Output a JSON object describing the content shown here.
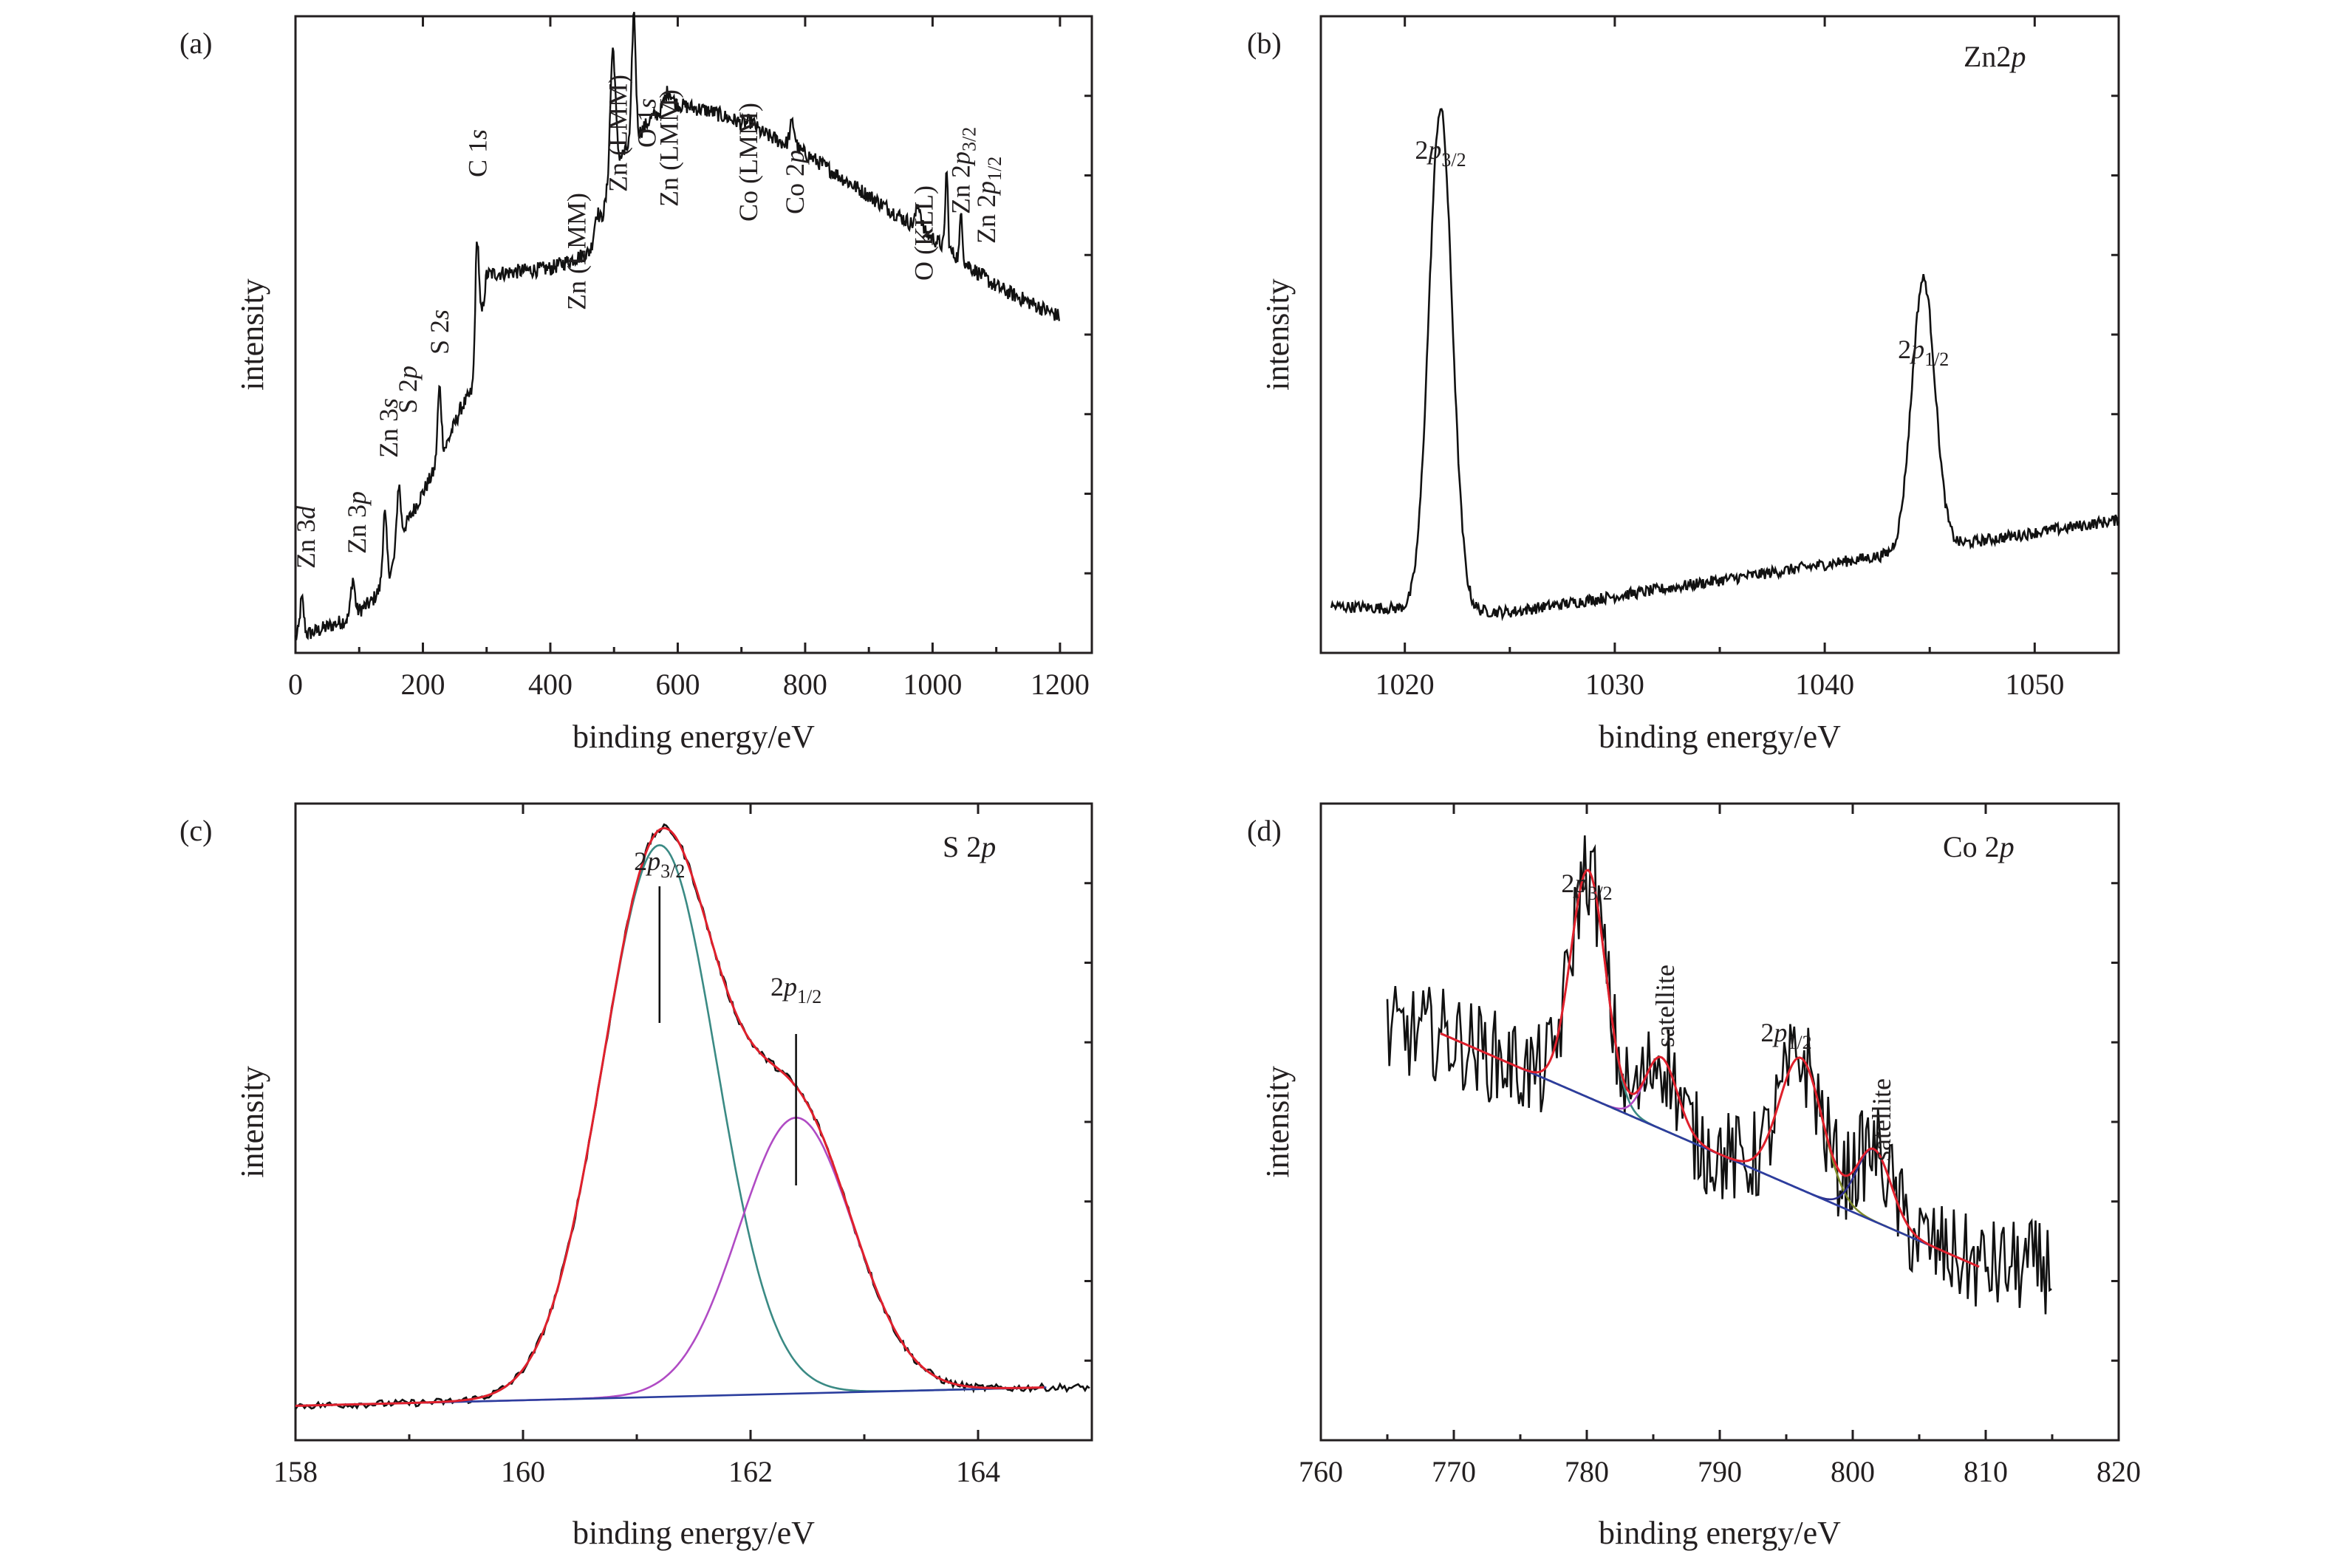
{
  "figure": {
    "panels": [
      {
        "id": "a",
        "label": "(a)",
        "title": "",
        "xlabel": "binding energy/eV",
        "ylabel": "intensity"
      },
      {
        "id": "b",
        "label": "(b)",
        "title": "Zn2p",
        "xlabel": "binding energy/eV",
        "ylabel": "intensity"
      },
      {
        "id": "c",
        "label": "(c)",
        "title": "S 2p",
        "xlabel": "binding energy/eV",
        "ylabel": "intensity"
      },
      {
        "id": "d",
        "label": "(d)",
        "title": "Co 2p",
        "xlabel": "binding energy/eV",
        "ylabel": "intensity"
      }
    ]
  },
  "chart_data": [
    {
      "panel": "a",
      "type": "line",
      "title": "",
      "xlabel": "binding energy/eV",
      "ylabel": "intensity",
      "xlim": [
        0,
        1250
      ],
      "xticks": [
        0,
        200,
        400,
        600,
        800,
        1000,
        1200
      ],
      "yticks_labeled": false,
      "baseline": [
        [
          0,
          0.02
        ],
        [
          30,
          0.03
        ],
        [
          80,
          0.05
        ],
        [
          120,
          0.08
        ],
        [
          150,
          0.13
        ],
        [
          170,
          0.2
        ],
        [
          200,
          0.26
        ],
        [
          230,
          0.32
        ],
        [
          260,
          0.4
        ],
        [
          280,
          0.43
        ],
        [
          300,
          0.62
        ],
        [
          400,
          0.63
        ],
        [
          470,
          0.66
        ],
        [
          500,
          0.8
        ],
        [
          530,
          0.84
        ],
        [
          560,
          0.88
        ],
        [
          600,
          0.9
        ],
        [
          650,
          0.89
        ],
        [
          700,
          0.87
        ],
        [
          800,
          0.82
        ],
        [
          900,
          0.75
        ],
        [
          1000,
          0.68
        ],
        [
          1100,
          0.6
        ],
        [
          1200,
          0.55
        ]
      ],
      "peaks": [
        {
          "name": "Zn 3d",
          "x": 10,
          "height": 0.06,
          "width": 3
        },
        {
          "name": "Zn 3p",
          "x": 90,
          "height": 0.06,
          "width": 3
        },
        {
          "name": "Zn 3s",
          "x": 140,
          "height": 0.11,
          "width": 3
        },
        {
          "name": "S 2p",
          "x": 162,
          "height": 0.1,
          "width": 3
        },
        {
          "name": "S 2s",
          "x": 226,
          "height": 0.12,
          "width": 3
        },
        {
          "name": "C 1s",
          "x": 285,
          "height": 0.2,
          "width": 3
        },
        {
          "name": "Zn (LMM)",
          "x": 472,
          "height": 0.05,
          "width": 4
        },
        {
          "name": "Zn (LMM)",
          "x": 498,
          "height": 0.2,
          "width": 4
        },
        {
          "name": "O 1s",
          "x": 531,
          "height": 0.21,
          "width": 3
        },
        {
          "name": "Zn (LMM)",
          "x": 585,
          "height": 0.03,
          "width": 6
        },
        {
          "name": "Co (LMM)",
          "x": 716,
          "height": 0.01,
          "width": 6
        },
        {
          "name": "Co 2p",
          "x": 780,
          "height": 0.04,
          "width": 4
        },
        {
          "name": "O (KLL)",
          "x": 978,
          "height": 0.04,
          "width": 4
        },
        {
          "name": "Zn 2p3/2",
          "x": 1022,
          "height": 0.13,
          "width": 2
        },
        {
          "name": "Zn 2p1/2",
          "x": 1045,
          "height": 0.08,
          "width": 2
        }
      ],
      "annotations": [
        {
          "text": "Zn 3",
          "italic": "d",
          "x": 30
        },
        {
          "text": "Zn 3",
          "italic": "p",
          "x": 110
        },
        {
          "text": "Zn 3",
          "italic": "s",
          "x": 160
        },
        {
          "text": "S 2",
          "italic": "p",
          "x": 190
        },
        {
          "text": "S 2",
          "italic": "s",
          "x": 240
        },
        {
          "text": "C 1",
          "italic": "s",
          "x": 300
        },
        {
          "text": "Zn (LMM)",
          "italic": "",
          "x": 455
        },
        {
          "text": "Zn (LMM)",
          "italic": "",
          "x": 520
        },
        {
          "text": "O 1",
          "italic": "s",
          "x": 565
        },
        {
          "text": "Zn (LMM)",
          "italic": "",
          "x": 600
        },
        {
          "text": "Co (LMM)",
          "italic": "",
          "x": 725
        },
        {
          "text": "Co 2",
          "italic": "p",
          "x": 798
        },
        {
          "text": "O (KLL)",
          "italic": "",
          "x": 1000
        },
        {
          "text": "Zn 2",
          "italic": "p",
          "sub": "3/2",
          "x": 1058
        },
        {
          "text": "Zn 2",
          "italic": "p",
          "sub": "1/2",
          "x": 1098
        }
      ]
    },
    {
      "panel": "b",
      "type": "line",
      "title": "Zn2p",
      "xlabel": "binding energy/eV",
      "ylabel": "intensity",
      "xlim": [
        1016,
        1054
      ],
      "xticks": [
        1020,
        1030,
        1040,
        1050
      ],
      "yticks_labeled": false,
      "baseline": [
        [
          1016.5,
          0.05
        ],
        [
          1025,
          0.04
        ],
        [
          1054,
          0.2
        ]
      ],
      "peaks": [
        {
          "name": "2p3/2",
          "x": 1021.7,
          "height": 0.87,
          "width": 0.55
        },
        {
          "name": "2p1/2",
          "x": 1044.7,
          "height": 0.47,
          "width": 0.55
        }
      ],
      "annotations": [
        {
          "text": "2",
          "italic": "p",
          "sub": "3/2",
          "x": 1021.7
        },
        {
          "text": "2",
          "italic": "p",
          "sub": "1/2",
          "x": 1044.7
        }
      ]
    },
    {
      "panel": "c",
      "type": "line",
      "title": "S 2p",
      "xlabel": "binding energy/eV",
      "ylabel": "intensity",
      "xlim": [
        158,
        165
      ],
      "xticks": [
        158,
        160,
        162,
        164
      ],
      "yticks_labeled": false,
      "series": [
        {
          "role": "experimental",
          "color": "#111111"
        },
        {
          "role": "fitted envelope",
          "color": "#e0202c"
        },
        {
          "role": "2p3/2 component",
          "color": "#3a8a84",
          "center": 161.2,
          "height": 0.9,
          "sigma": 0.5
        },
        {
          "role": "2p1/2 component",
          "color": "#b04bc4",
          "center": 162.4,
          "height": 0.45,
          "sigma": 0.5
        },
        {
          "role": "background",
          "color": "#2c3e9e",
          "from": [
            158,
            0.02
          ],
          "to": [
            164.6,
            0.05
          ]
        }
      ],
      "annotations": [
        {
          "text": "2",
          "italic": "p",
          "sub": "3/2",
          "x": 161.2
        },
        {
          "text": "2",
          "italic": "p",
          "sub": "1/2",
          "x": 162.4
        }
      ]
    },
    {
      "panel": "d",
      "type": "line",
      "title": "Co 2p",
      "xlabel": "binding energy/eV",
      "ylabel": "intensity",
      "xlim": [
        760,
        820
      ],
      "xticks": [
        760,
        770,
        780,
        790,
        800,
        810,
        820
      ],
      "yticks_labeled": false,
      "series": [
        {
          "role": "experimental",
          "color": "#111111"
        },
        {
          "role": "fitted envelope",
          "color": "#e0202c"
        },
        {
          "role": "2p3/2 component",
          "color": "#3a8a84",
          "center": 780.1,
          "height": 0.38,
          "sigma": 1.3
        },
        {
          "role": "satellite component",
          "color": "#b04bc4",
          "center": 785.6,
          "height": 0.12,
          "sigma": 1.2
        },
        {
          "role": "2p1/2 component",
          "color": "#7d8a2a",
          "center": 796.1,
          "height": 0.22,
          "sigma": 1.6
        },
        {
          "role": "satellite component",
          "color": "#2d2f8c",
          "center": 801.6,
          "height": 0.12,
          "sigma": 1.3
        },
        {
          "role": "background",
          "color": "#2c3e9e",
          "from": [
            769,
            0.68
          ],
          "to": [
            809.5,
            0.29
          ]
        }
      ],
      "annotations": [
        {
          "text": "2",
          "italic": "p",
          "sub": "3/2",
          "x": 780
        },
        {
          "text": "satellite",
          "italic": "",
          "x": 786
        },
        {
          "text": "2",
          "italic": "p",
          "sub": "1/2",
          "x": 795
        },
        {
          "text": "satellite",
          "italic": "",
          "x": 802
        }
      ]
    }
  ]
}
